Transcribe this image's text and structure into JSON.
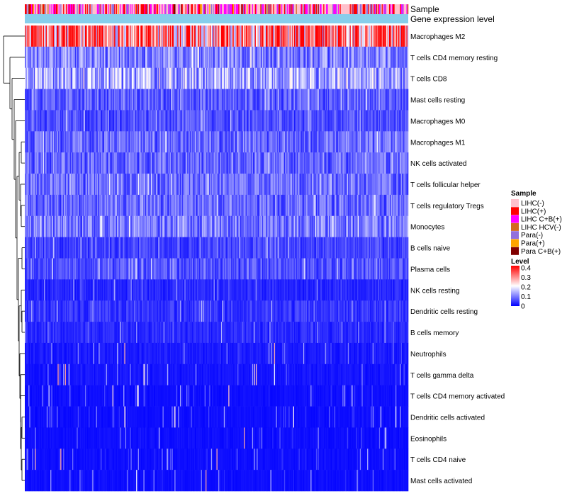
{
  "chart_data": {
    "type": "heatmap",
    "title": "",
    "annotation_tracks": [
      "Sample",
      "Gene expression level"
    ],
    "rows": [
      "Macrophages M2",
      "T cells CD4 memory resting",
      "T cells CD8",
      "Mast cells resting",
      "Macrophages M0",
      "Macrophages M1",
      "NK cells activated",
      "T cells follicular helper",
      "T cells regulatory  Tregs",
      "Monocytes",
      "B cells naive",
      "Plasma cells",
      "NK cells resting",
      "Dendritic cells resting",
      "B cells memory",
      "Neutrophils",
      "T cells gamma delta",
      "T cells CD4 memory activated",
      "Dendritic cells activated",
      "Eosinophils",
      "T cells CD4 naive",
      "Mast cells activated"
    ],
    "approx_row_mean_level": [
      0.3,
      0.1,
      0.13,
      0.07,
      0.06,
      0.08,
      0.08,
      0.08,
      0.08,
      0.09,
      0.05,
      0.06,
      0.03,
      0.04,
      0.03,
      0.02,
      0.015,
      0.01,
      0.01,
      0.01,
      0.01,
      0.01
    ],
    "sample_legend": {
      "title": "Sample",
      "items": [
        {
          "label": "LIHC(-)",
          "color": "#ffc0cb"
        },
        {
          "label": "LIHC(+)",
          "color": "#ff0000"
        },
        {
          "label": "LIHC C+B(+)",
          "color": "#ff00ff"
        },
        {
          "label": "LIHC HCV(-)",
          "color": "#d2691e"
        },
        {
          "label": "Para(-)",
          "color": "#9370db"
        },
        {
          "label": "Para(+)",
          "color": "#ffa500"
        },
        {
          "label": "Para C+B(+)",
          "color": "#800000"
        }
      ]
    },
    "level_legend": {
      "title": "Level",
      "ticks": [
        "0.4",
        "0.3",
        "0.2",
        "0.1",
        "0"
      ],
      "range": [
        0,
        0.4
      ],
      "colors": [
        "#0000ff",
        "#ffffff",
        "#ff0000"
      ]
    },
    "gene_expression_track_color": "#87ceeb"
  }
}
